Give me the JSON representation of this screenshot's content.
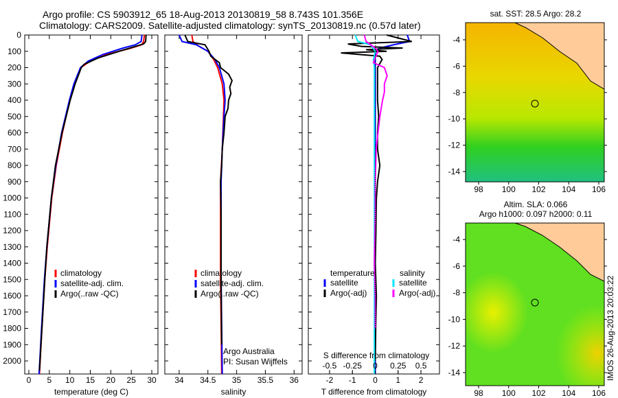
{
  "title_line1": "Argo profile: CS 5903912_65 18-Aug-2013 20130819_58 8.743S 101.356E",
  "title_line2": "Climatology: CARS2009. Satellite-adjusted climatology: synTS_20130819.nc (0.57d later)",
  "chart_data": [
    {
      "type": "line",
      "xlabel": "temperature (deg C)",
      "xlim": [
        -1,
        31.5
      ],
      "ylim": [
        0,
        2080
      ],
      "xticks": [
        0,
        5,
        10,
        15,
        20,
        25,
        30
      ],
      "yticks": [
        0,
        100,
        200,
        300,
        400,
        500,
        600,
        700,
        800,
        900,
        1000,
        1100,
        1200,
        1300,
        1400,
        1500,
        1600,
        1700,
        1800,
        1900,
        2000
      ],
      "legend": [
        "climatology",
        "satellite-adj. clim.",
        "Argo(..raw -QC)"
      ],
      "series": [
        {
          "name": "climatology",
          "color": "#ff0000",
          "depth": [
            0,
            40,
            60,
            80,
            120,
            160,
            200,
            300,
            400,
            600,
            800,
            1000,
            1300,
            1500,
            1800,
            2080
          ],
          "values": [
            28.2,
            28,
            27.5,
            25,
            19,
            15,
            12.7,
            11.2,
            10,
            8.2,
            6.7,
            5.6,
            4.5,
            3.9,
            3.2,
            2.6
          ]
        },
        {
          "name": "satellite-adj. clim.",
          "color": "#0000ff",
          "depth": [
            0,
            40,
            60,
            80,
            120,
            160,
            200,
            300,
            400,
            600,
            800,
            1000,
            1300,
            1500,
            1800,
            2080
          ],
          "values": [
            27.6,
            27.4,
            26,
            23,
            18,
            14.5,
            12.6,
            11,
            9.9,
            8,
            6.6,
            5.5,
            4.4,
            3.8,
            3.1,
            2.5
          ]
        },
        {
          "name": "Argo(..raw -QC)",
          "color": "#000000",
          "depth": [
            0,
            40,
            55,
            70,
            100,
            140,
            180,
            200,
            300,
            400,
            600,
            800,
            1000,
            1300,
            1500,
            1800,
            2060
          ],
          "values": [
            28.6,
            28.5,
            28,
            26,
            22,
            17,
            13.5,
            12.8,
            11.3,
            10.1,
            8.1,
            6.5,
            5.5,
            4.4,
            3.9,
            3.2,
            2.6
          ]
        }
      ]
    },
    {
      "type": "line",
      "xlabel": "salinity",
      "xlim": [
        33.75,
        36.14
      ],
      "ylim": [
        0,
        2080
      ],
      "xticks": [
        34,
        34.5,
        35,
        35.5,
        36
      ],
      "legend": [
        "climatology",
        "satellite-adj. clim.",
        "Argo(..raw -QC)"
      ],
      "annotation": [
        "Argo Australia",
        "PI: Susan Wijffels"
      ],
      "series": [
        {
          "name": "climatology",
          "color": "#ff0000",
          "depth": [
            0,
            40,
            70,
            100,
            150,
            200,
            300,
            400,
            500,
            700,
            900,
            1200,
            1500,
            2080
          ],
          "values": [
            34.22,
            34.24,
            34.35,
            34.5,
            34.6,
            34.67,
            34.75,
            34.78,
            34.77,
            34.75,
            34.72,
            34.72,
            34.72,
            34.74
          ]
        },
        {
          "name": "satellite-adj. clim.",
          "color": "#0000ff",
          "depth": [
            0,
            40,
            60,
            100,
            150,
            200,
            300,
            400,
            500,
            700,
            900,
            1200,
            1500,
            2080
          ],
          "values": [
            34.0,
            34.05,
            34.3,
            34.5,
            34.62,
            34.7,
            34.78,
            34.8,
            34.78,
            34.75,
            34.73,
            34.73,
            34.73,
            34.75
          ]
        },
        {
          "name": "Argo(..raw -QC)",
          "color": "#000000",
          "depth": [
            0,
            40,
            60,
            100,
            130,
            170,
            200,
            240,
            280,
            320,
            360,
            400,
            450,
            500,
            600,
            700,
            800,
            900,
            1100,
            1500,
            1900
          ],
          "values": [
            34.1,
            34.15,
            34.45,
            34.52,
            34.55,
            34.7,
            34.72,
            34.86,
            34.92,
            34.88,
            34.9,
            34.86,
            34.85,
            34.8,
            34.78,
            34.75,
            34.74,
            34.72,
            34.73,
            34.73,
            34.74
          ]
        }
      ]
    },
    {
      "type": "line",
      "xlabel": "T difference from climatology",
      "x2label": "S difference from climatology",
      "xlim": [
        -2.93,
        2.81
      ],
      "ylim": [
        0,
        2080
      ],
      "xticks": [
        -2,
        -1,
        0,
        1,
        2
      ],
      "x2ticks": [
        "-0.5",
        "-0.25",
        "0",
        "0.25",
        "0.5"
      ],
      "x2values": [
        -0.5,
        -0.25,
        0,
        0.25,
        0.5
      ],
      "legend_temperature": {
        "title": "temperature",
        "items": [
          "satellite",
          "Argo(-adj)"
        ]
      },
      "legend_salinity": {
        "title": "salinity",
        "items": [
          "satellite",
          "Argo(-adj)"
        ]
      },
      "series": [
        {
          "name": "T satellite",
          "color": "#0000ff",
          "depth": [
            0,
            40,
            60,
            80,
            100,
            150,
            200,
            400,
            800,
            1200,
            1600,
            2080
          ],
          "values": [
            1.4,
            1.5,
            0.8,
            0.2,
            0,
            0,
            0,
            0,
            0,
            0,
            0,
            0
          ]
        },
        {
          "name": "T Argo(-adj)",
          "color": "#000000",
          "depth": [
            0,
            40,
            55,
            70,
            80,
            90,
            100,
            110,
            130,
            150,
            200,
            300,
            400,
            500,
            600,
            700,
            800,
            900,
            1000,
            1200,
            1400,
            1600,
            1800,
            2000
          ],
          "values": [
            0.5,
            1.6,
            -1.2,
            -0.6,
            1.2,
            -0.4,
            0.5,
            -1.5,
            0.2,
            0.3,
            0.1,
            0.1,
            0.1,
            0.15,
            0.1,
            0.1,
            0.2,
            0.1,
            0.05,
            0.03,
            0.0,
            0.05,
            0.02,
            0.0
          ]
        },
        {
          "name": "S satellite",
          "color": "#00e5ff",
          "depth": [
            0,
            40,
            60,
            100,
            150,
            200,
            400,
            800,
            1200,
            2080
          ],
          "values": [
            -0.22,
            -0.19,
            -0.05,
            0,
            -0.02,
            -0.01,
            -0.01,
            -0.01,
            -0.01,
            -0.01
          ]
        },
        {
          "name": "S Argo(-adj)",
          "color": "#ff00ff",
          "depth": [
            0,
            40,
            60,
            80,
            100,
            140,
            170,
            200,
            250,
            300,
            350,
            400,
            500,
            700,
            900,
            1100,
            1400,
            1600,
            1800
          ],
          "values": [
            -0.12,
            -0.1,
            -0.05,
            0,
            0.03,
            0.0,
            -0.02,
            0.1,
            0.13,
            0.1,
            0.1,
            0.08,
            0.05,
            0.01,
            0,
            0,
            -0.01,
            0,
            0
          ]
        }
      ]
    },
    {
      "type": "heatmap",
      "title": "sat. SST: 28.5 Argo: 28.2",
      "xticks": [
        "98",
        "100",
        "102",
        "104",
        "106"
      ],
      "yticks": [
        "-4",
        "-6",
        "-8",
        "-10",
        "-12",
        "-14"
      ]
    },
    {
      "type": "heatmap",
      "title_line1": "Altim. SLA: 0.066",
      "title_line2": "Argo h1000: 0.097 h2000: 0.11",
      "xticks": [
        "98",
        "100",
        "102",
        "104",
        "106"
      ],
      "yticks": [
        "-4",
        "-6",
        "-8",
        "-10",
        "-12",
        "-14"
      ]
    }
  ],
  "credit": "IMOS 26-Aug-2013 20:03:22"
}
